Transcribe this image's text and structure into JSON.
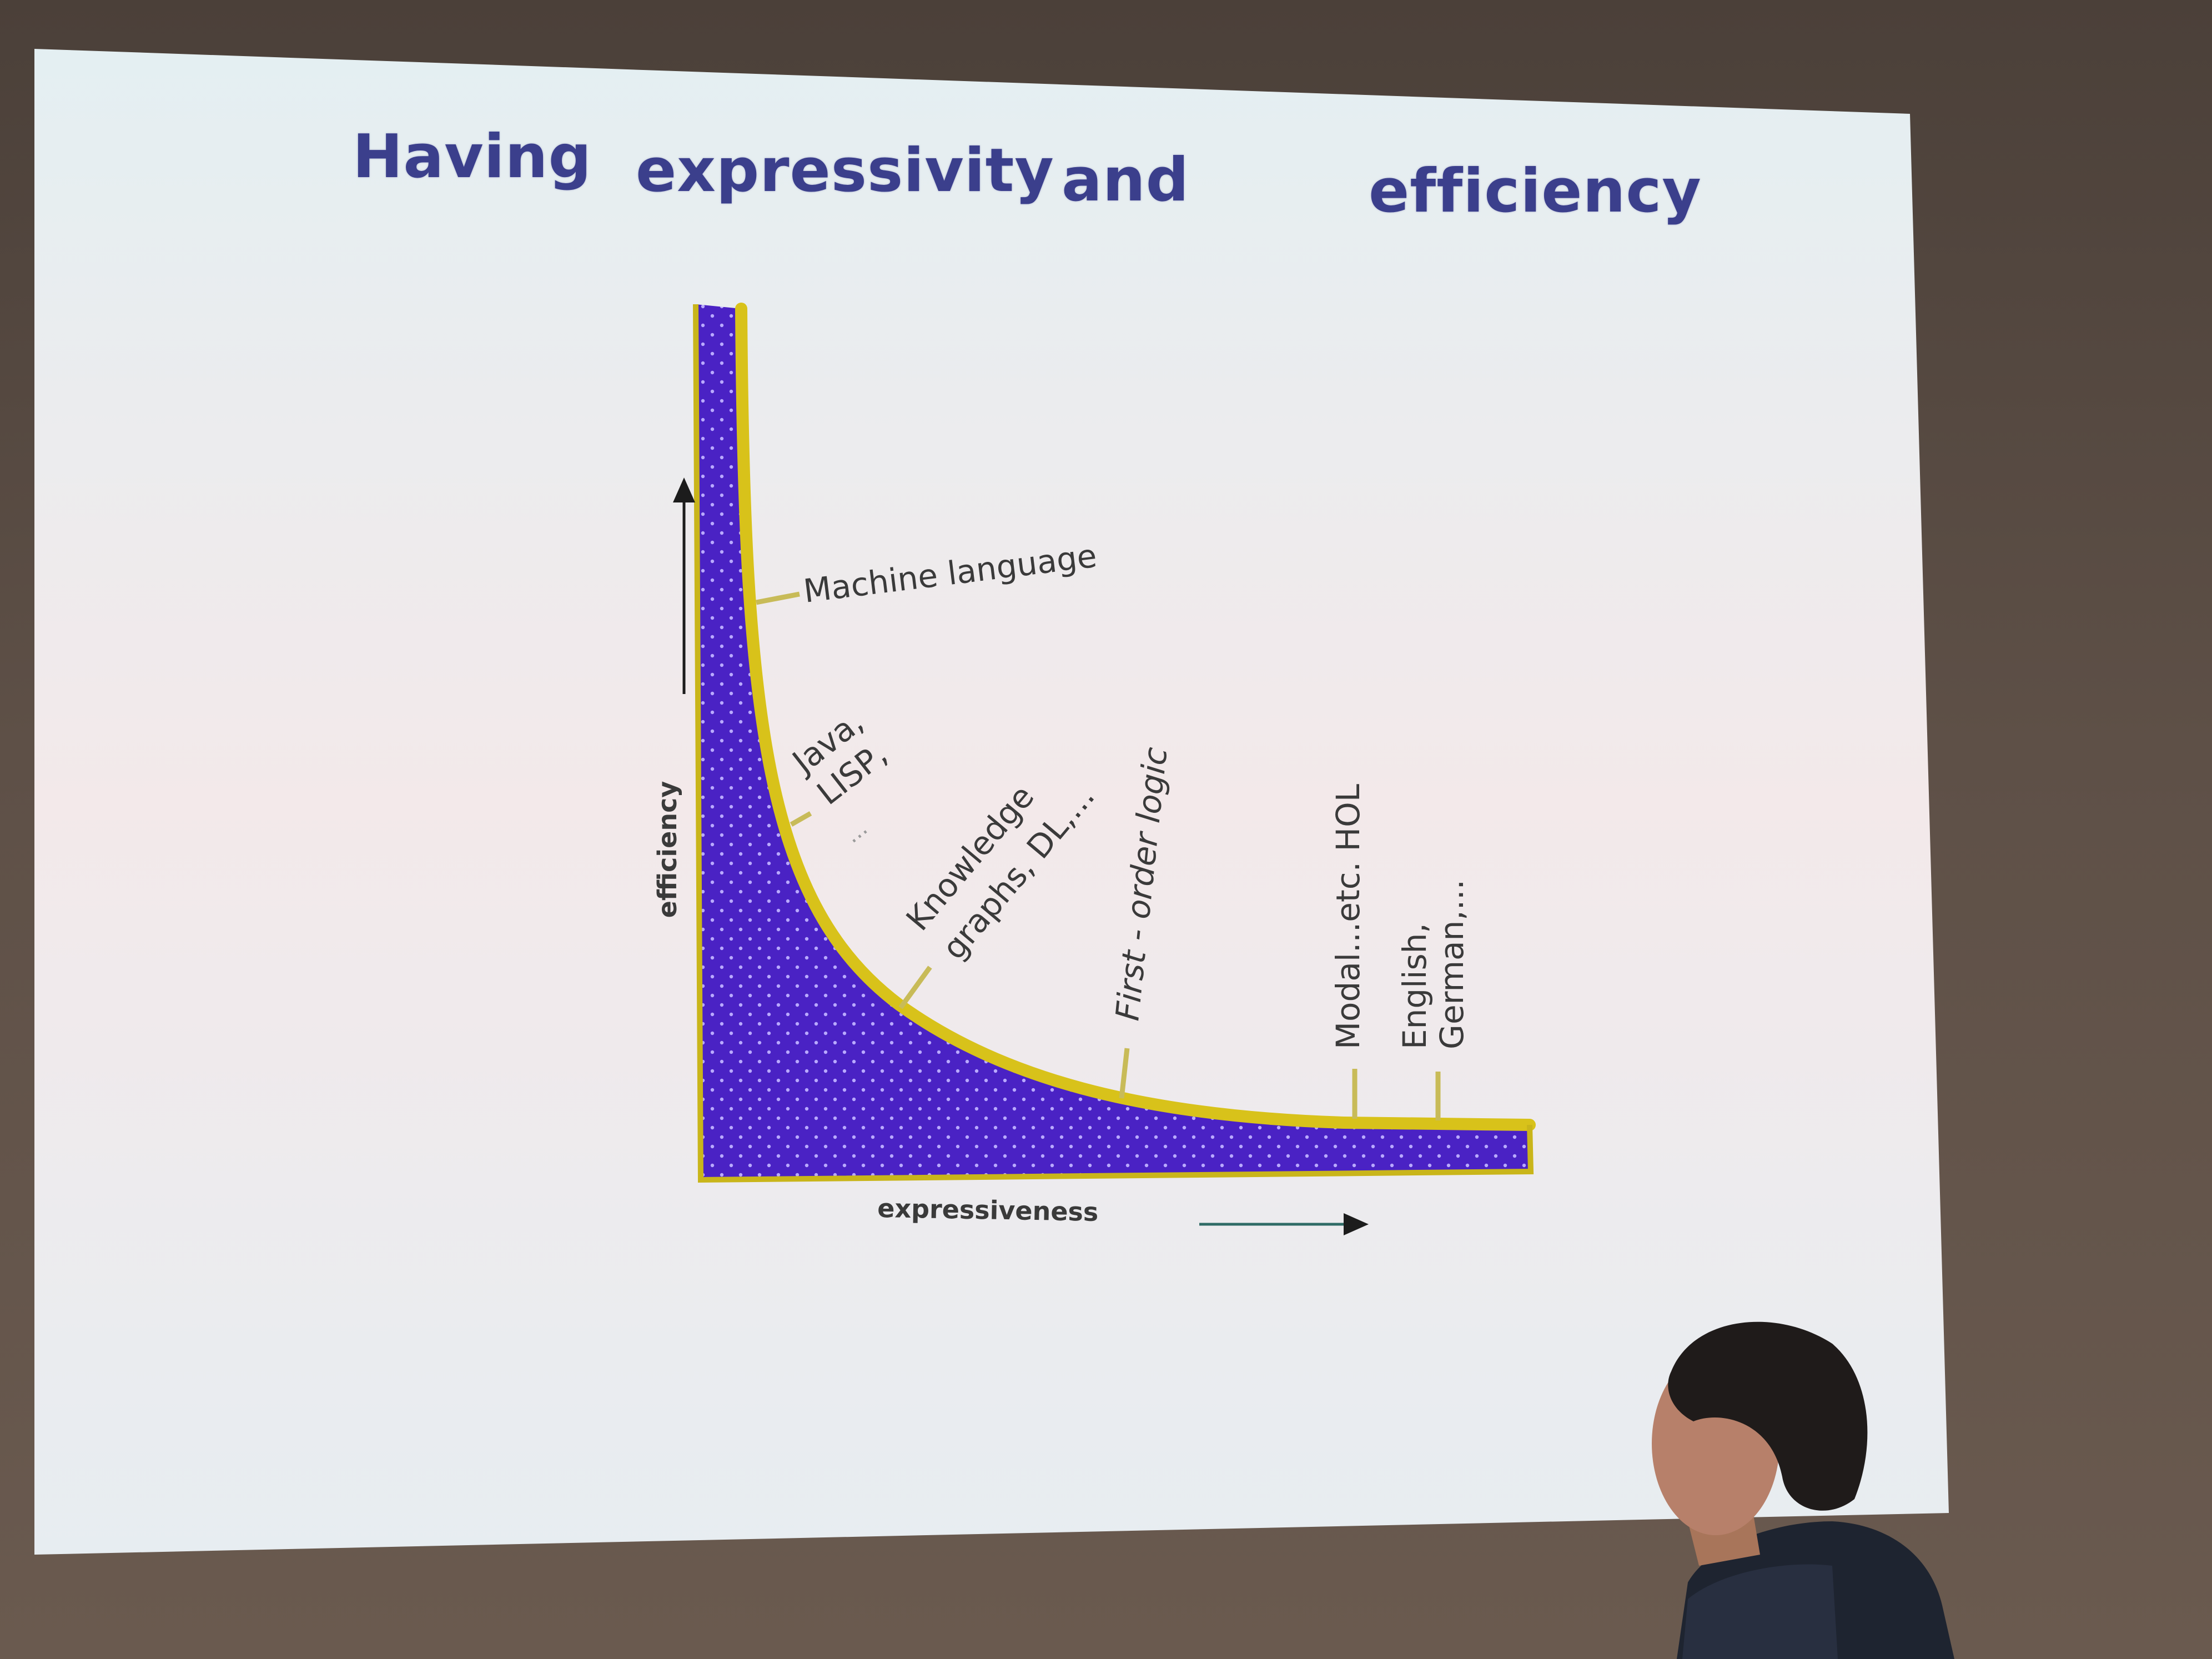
{
  "slide": {
    "title_words": [
      "Having",
      "expressivity",
      "and",
      "efficiency"
    ]
  },
  "chart": {
    "y_axis_label": "efficiency",
    "x_axis_label": "expressiveness",
    "annotations": [
      "Machine language",
      "Java,",
      "LISP,",
      "...",
      "Knowledge",
      "graphs, DL,...",
      "First - order logic",
      "Modal...etc. HOL",
      "English,",
      "German,..."
    ]
  },
  "colors": {
    "title": "#3b3f8c",
    "curve_fill": "#4a22c4",
    "curve_outline": "#d8c21a",
    "label_text": "#3a3a3a",
    "slide_background": "#eaf0f3"
  }
}
